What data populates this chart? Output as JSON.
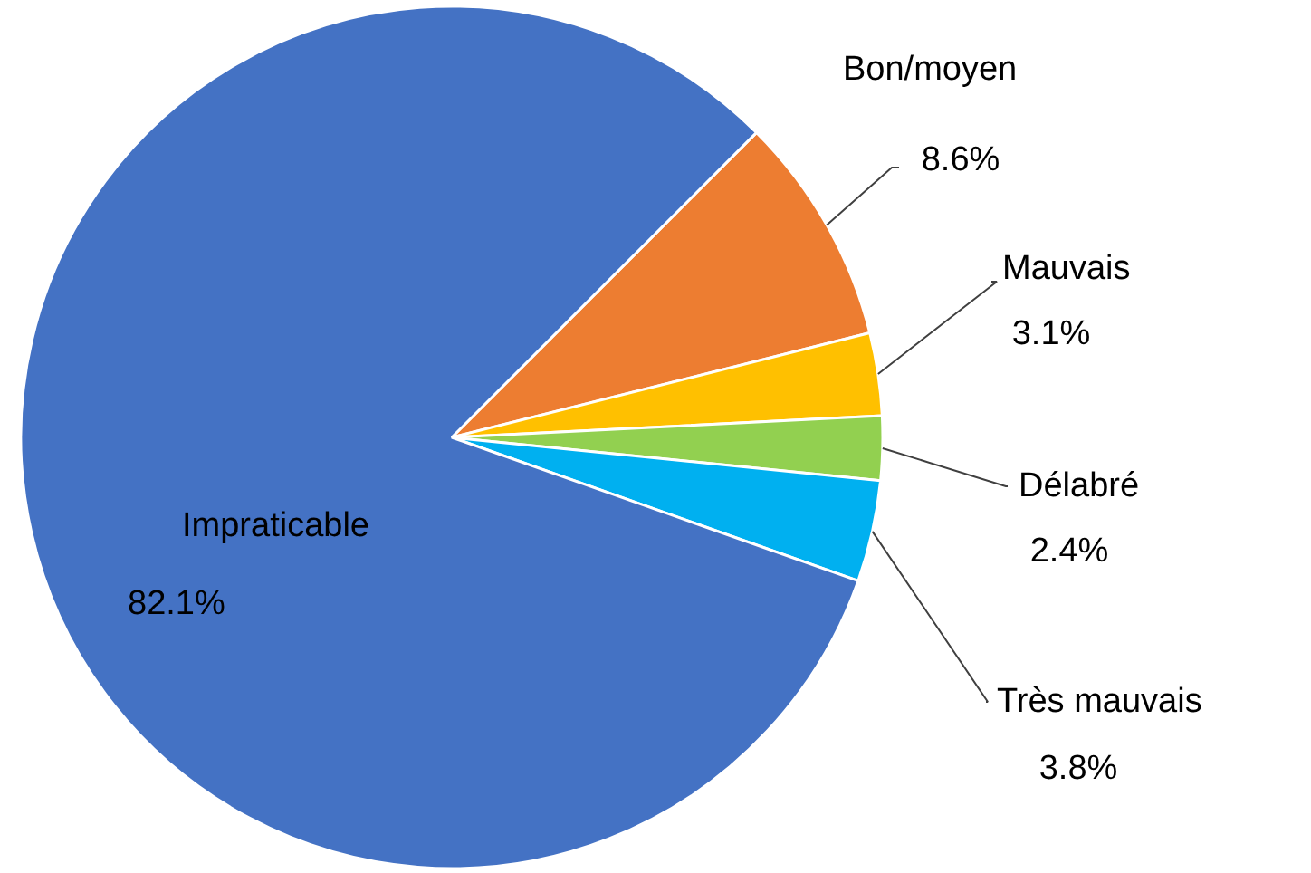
{
  "chart_data": {
    "type": "pie",
    "categories": [
      "Bon/moyen",
      "Mauvais",
      "Délabré",
      "Très mauvais",
      "Impraticable"
    ],
    "values": [
      8.6,
      3.1,
      2.4,
      3.8,
      82.1
    ],
    "value_labels": [
      "8.6%",
      "3.1%",
      "2.4%",
      "3.8%",
      "82.1%"
    ],
    "colors": [
      "#ed7d31",
      "#ffc000",
      "#92d050",
      "#00b0f0",
      "#4472c4"
    ]
  }
}
